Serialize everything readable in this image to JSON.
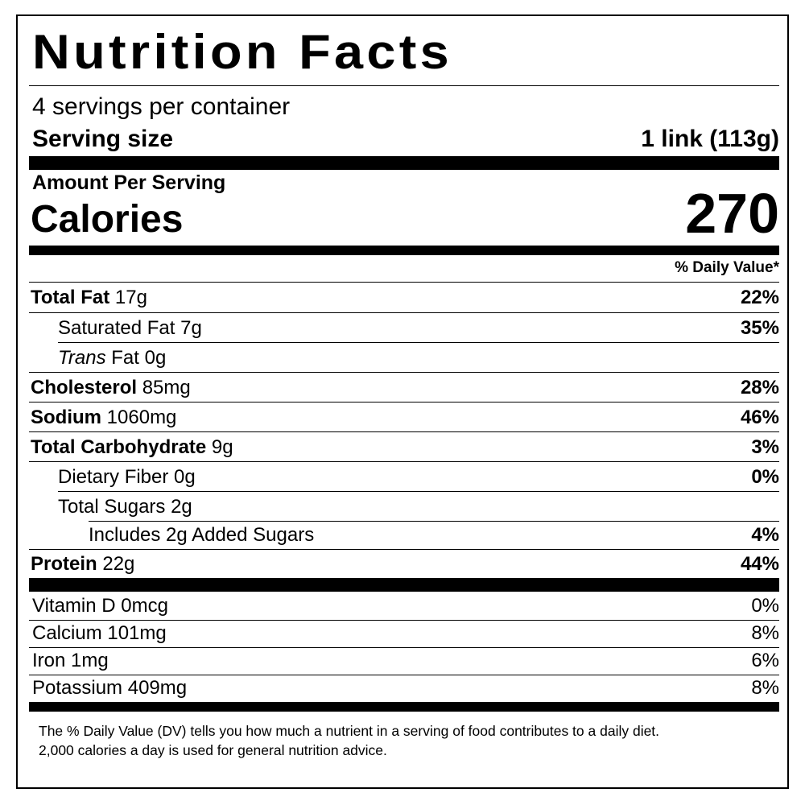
{
  "title": "Nutrition Facts",
  "servings_per_container": "4 servings per container",
  "serving_size_label": "Serving size",
  "serving_size_value": "1 link (113g)",
  "amount_per_serving": "Amount Per Serving",
  "calories_label": "Calories",
  "calories_value": "270",
  "daily_value_header": "% Daily Value*",
  "nutrients": [
    {
      "name": "Total Fat",
      "amount": "17g",
      "dv": "22%"
    },
    {
      "name": "Saturated Fat",
      "amount": "7g",
      "dv": "35%"
    },
    {
      "name_italic": "Trans",
      "name": "Fat",
      "amount": "0g",
      "dv": ""
    },
    {
      "name": "Cholesterol",
      "amount": "85mg",
      "dv": "28%"
    },
    {
      "name": "Sodium",
      "amount": "1060mg",
      "dv": "46%"
    },
    {
      "name": "Total Carbohydrate",
      "amount": "9g",
      "dv": "3%"
    },
    {
      "name": "Dietary Fiber",
      "amount": "0g",
      "dv": "0%"
    },
    {
      "name": "Total Sugars",
      "amount": "2g",
      "dv": ""
    },
    {
      "name": "Includes 2g Added Sugars",
      "amount": "",
      "dv": "4%"
    },
    {
      "name": "Protein",
      "amount": "22g",
      "dv": "44%"
    }
  ],
  "vitamins": [
    {
      "name": "Vitamin D",
      "amount": "0mcg",
      "dv": "0%"
    },
    {
      "name": "Calcium",
      "amount": "101mg",
      "dv": "8%"
    },
    {
      "name": "Iron",
      "amount": "1mg",
      "dv": "6%"
    },
    {
      "name": "Potassium",
      "amount": "409mg",
      "dv": "8%"
    }
  ],
  "footnote_line1": "The % Daily Value (DV) tells you how much a nutrient in a serving of food contributes to a daily diet.",
  "footnote_line2": "2,000 calories a day is used for general nutrition advice."
}
